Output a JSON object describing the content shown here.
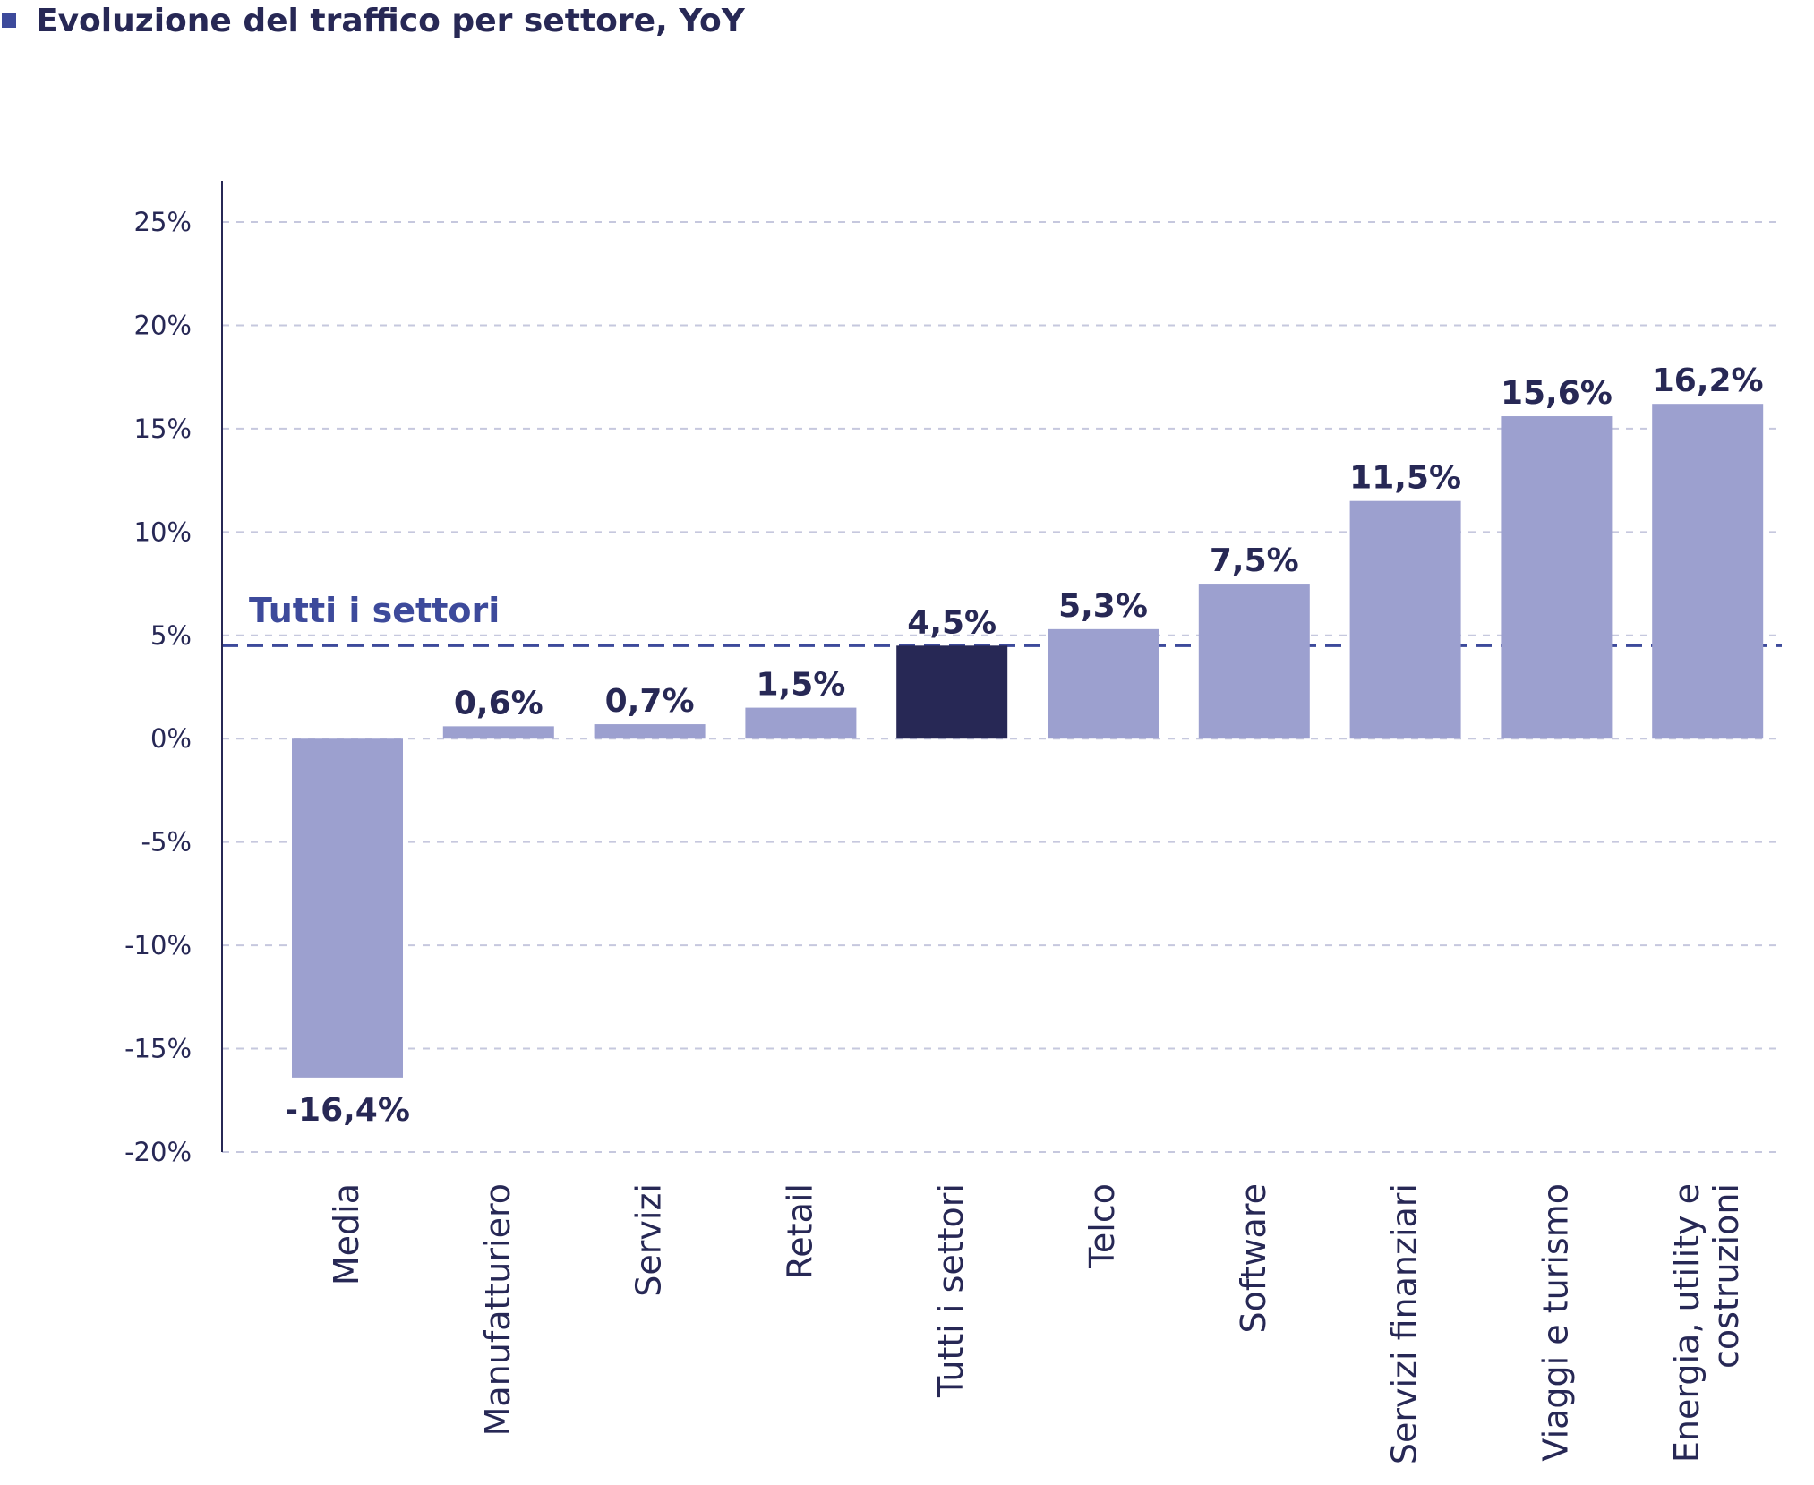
{
  "chart_data": {
    "type": "bar",
    "title": "Evoluzione del traffico per settore, YoY",
    "categories": [
      "Media",
      "Manufatturiero",
      "Servizi",
      "Retail",
      "Tutti i settori",
      "Telco",
      "Software",
      "Servizi finanziari",
      "Viaggi e turismo",
      "Energia, utility e costruzioni"
    ],
    "values": [
      -16.4,
      0.6,
      0.7,
      1.5,
      4.5,
      5.3,
      7.5,
      11.5,
      15.6,
      16.2
    ],
    "value_labels": [
      "-16,4%",
      "0,6%",
      "0,7%",
      "1,5%",
      "4,5%",
      "5,3%",
      "7,5%",
      "11,5%",
      "15,6%",
      "16,2%"
    ],
    "highlight_category": "Tutti i settori",
    "reference_line": {
      "label": "Tutti i settori",
      "value": 4.5
    },
    "ylim": [
      -20,
      25
    ],
    "yticks": [
      25,
      20,
      15,
      10,
      5,
      0,
      -5,
      -10,
      -15,
      -20
    ],
    "ytick_labels": [
      "25%",
      "20%",
      "15%",
      "10%",
      "5%",
      "0%",
      "-5%",
      "-10%",
      "-15%",
      "-20%"
    ],
    "xlabel": "",
    "ylabel": "",
    "grid": true,
    "legend": "none"
  },
  "colors": {
    "bar": "#9ca0cf",
    "highlight_bar": "#272855",
    "reference_line": "#3d4a9b",
    "text": "#272855",
    "grid": "#c6c8de",
    "axis": "#272855"
  }
}
